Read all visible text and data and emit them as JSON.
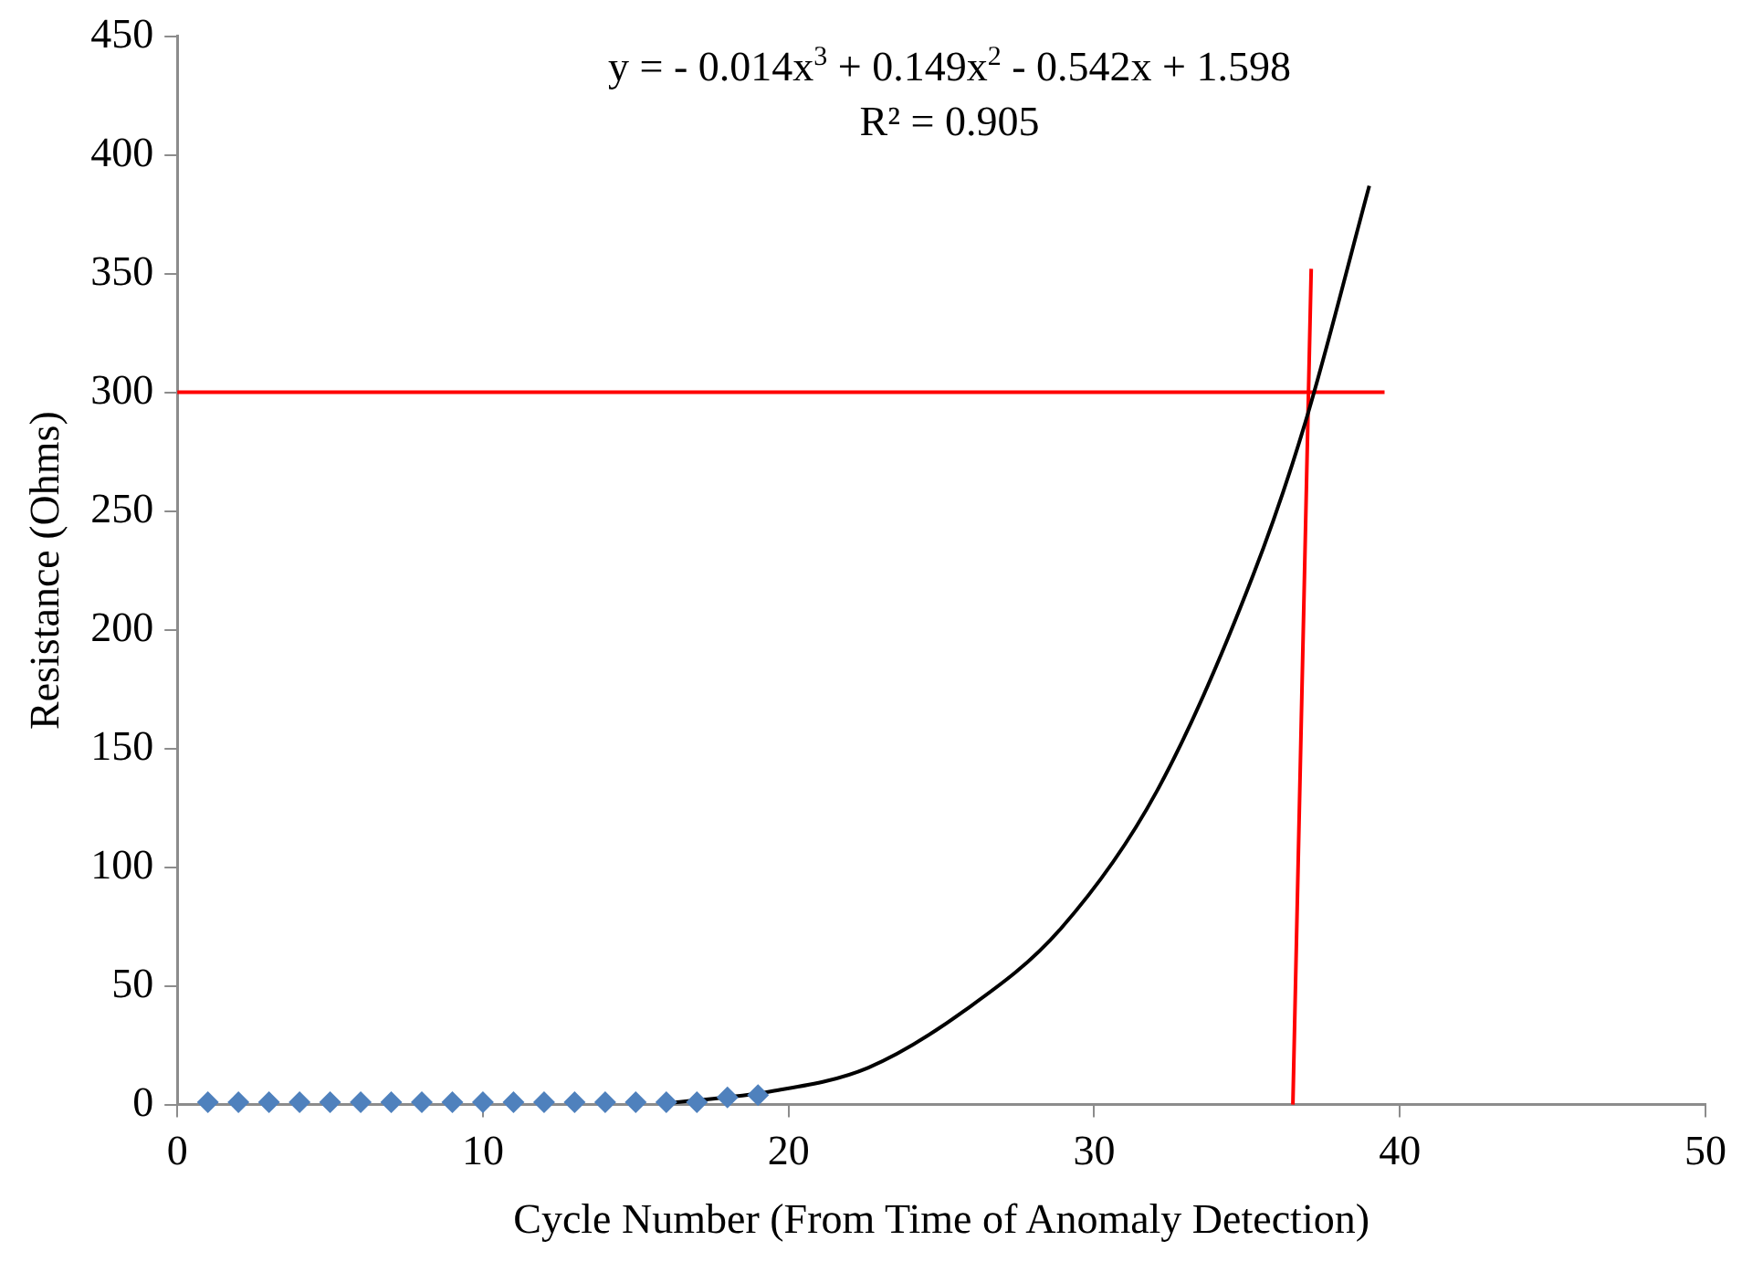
{
  "chart_data": {
    "type": "scatter",
    "xlabel": "Cycle Number (From Time of Anomaly Detection)",
    "ylabel": "Resistance (Ohms)",
    "xlim": [
      0,
      50
    ],
    "xticks": [
      0,
      10,
      20,
      30,
      40,
      50
    ],
    "ylim": [
      0,
      450
    ],
    "yticks": [
      0,
      50,
      100,
      150,
      200,
      250,
      300,
      350,
      400,
      450
    ],
    "grid": false,
    "legend": false,
    "annotations": [
      "y = - 0.014x$^{3}$ + 0.149x$^{2}$ - 0.542x + 1.598",
      "R² = 0.905"
    ],
    "series": [
      {
        "color": "#4f81bd",
        "marker": "diamond",
        "x": [
          1,
          2,
          3,
          4,
          5,
          6,
          7,
          8,
          9,
          10,
          11,
          12,
          13,
          14,
          15,
          16,
          17,
          18,
          19
        ],
        "values": [
          1,
          1,
          1,
          1,
          1,
          1,
          1,
          1,
          1,
          1,
          1,
          1,
          1,
          1,
          1,
          1,
          1,
          3,
          4
        ]
      },
      {
        "type": "line",
        "color": "#000000",
        "marker": "none",
        "x": [
          16,
          19.45,
          22.6,
          25.75,
          28.9,
          32.05,
          35.2,
          36.9,
          39
        ],
        "values": [
          0.5,
          5.6,
          15.5,
          39.5,
          74,
          132,
          223,
          287,
          387
        ]
      },
      {
        "type": "line",
        "color": "#ff0000",
        "marker": "none",
        "x": [
          0,
          39.5
        ],
        "values": [
          300,
          300
        ]
      },
      {
        "type": "line",
        "color": "#ff0000",
        "marker": "none",
        "x": [
          36.5,
          37.1
        ],
        "values": [
          0,
          352
        ]
      }
    ]
  }
}
